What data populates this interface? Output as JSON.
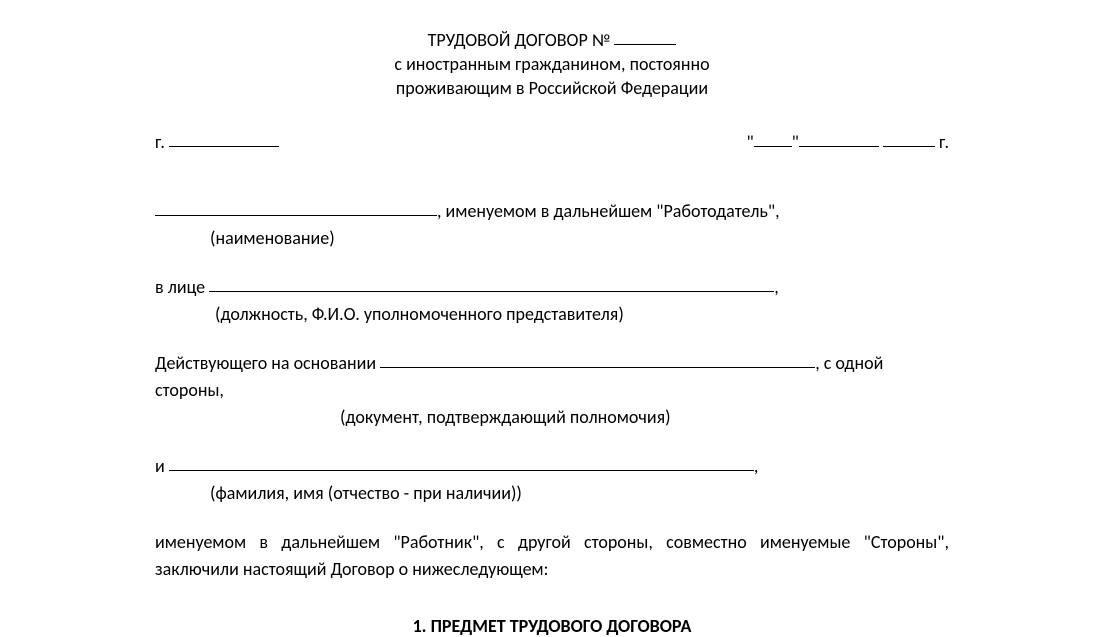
{
  "title": {
    "line1_prefix": "ТРУДОВОЙ ДОГОВОР № ",
    "line2": "с иностранным гражданином, постоянно",
    "line3": "проживающим в Российской Федерации"
  },
  "date_row": {
    "city_prefix": "г. ",
    "quote_open": "\"",
    "quote_close": "\"",
    "year_suffix": " г."
  },
  "employer": {
    "suffix": ", именуемом в дальнейшем \"Работодатель\",",
    "hint": "(наименование)"
  },
  "representative": {
    "prefix": "в лице ",
    "suffix": ",",
    "hint": "(должность, Ф.И.О. уполномоченного представителя)"
  },
  "basis": {
    "prefix": "Действующего на основании ",
    "suffix": ", с одной стороны,",
    "hint": "(документ, подтверждающий полномочия)"
  },
  "and_block": {
    "prefix": "и ",
    "suffix": ",",
    "hint": "(фамилия, имя (отчество - при наличии))"
  },
  "closing_para": "именуемом в дальнейшем \"Работник\", с другой стороны, совместно именуемые \"Стороны\", заключили настоящий Договор о нижеследующем:",
  "section1_title": "1. ПРЕДМЕТ ТРУДОВОГО ДОГОВОРА"
}
